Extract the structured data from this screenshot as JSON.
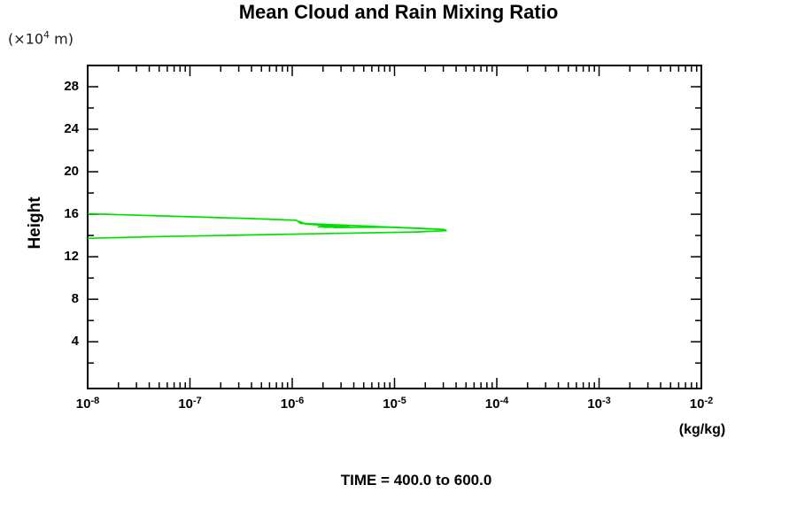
{
  "page": {
    "background": "#ffffff",
    "axis_color": "#000000",
    "accent_color": "#00E000"
  },
  "chart_data": {
    "type": "line",
    "title": "Mean Cloud and Rain Mixing Ratio",
    "annotation": "TIME = 400.0 to 600.0",
    "xlabel": "(kg/kg)",
    "ylabel": "Height",
    "y_unit_prefix": "(×10",
    "y_unit_exponent": "4",
    "y_unit_suffix": " m)",
    "x_scale": "log",
    "x_tick_base": "10",
    "x_major_tick_exponents": [
      -8,
      -7,
      -6,
      -5,
      -4,
      -3,
      -2
    ],
    "xlim_exponents": [
      -8,
      -2
    ],
    "y_major_ticks": [
      4,
      8,
      12,
      16,
      20,
      24,
      28
    ],
    "y_minor_ticks": [
      2,
      6,
      10,
      14,
      18,
      22,
      26
    ],
    "ylim": [
      -0.4,
      30
    ],
    "grid": false,
    "legend": "none",
    "line_color": "#00E000",
    "series": [
      {
        "name": "cloud-rain-mean-profile",
        "color": "#00E000",
        "width": 1.7,
        "points": [
          [
            1e-08,
            16.05
          ],
          [
            5e-08,
            15.85
          ],
          [
            3.7e-07,
            15.6
          ],
          [
            1.1e-06,
            15.43
          ],
          [
            1.2e-06,
            15.14
          ],
          [
            4e-06,
            14.93
          ],
          [
            1.3e-05,
            14.72
          ],
          [
            3.1e-05,
            14.56
          ],
          [
            3.2e-05,
            14.45
          ],
          [
            1.6e-05,
            14.33
          ],
          [
            2.7e-06,
            14.2
          ],
          [
            3.7e-07,
            14.05
          ],
          [
            5e-08,
            13.9
          ],
          [
            1e-08,
            13.73
          ]
        ]
      },
      {
        "name": "secondary-profile-overlap",
        "color": "#00E000",
        "width": 1.7,
        "points": [
          [
            1.15e-06,
            15.35
          ],
          [
            1.35e-06,
            15.08
          ],
          [
            2.4e-06,
            14.9
          ],
          [
            1.8e-06,
            14.82
          ],
          [
            3.6e-06,
            14.82
          ],
          [
            2.6e-06,
            14.75
          ],
          [
            9e-06,
            14.78
          ],
          [
            1.6e-05,
            14.7
          ],
          [
            2.4e-05,
            14.62
          ]
        ]
      },
      {
        "name": "overlap-thick-segment",
        "color": "#00E000",
        "width": 3.4,
        "points": [
          [
            2e-06,
            14.85
          ],
          [
            3.4e-06,
            14.85
          ]
        ]
      }
    ]
  }
}
